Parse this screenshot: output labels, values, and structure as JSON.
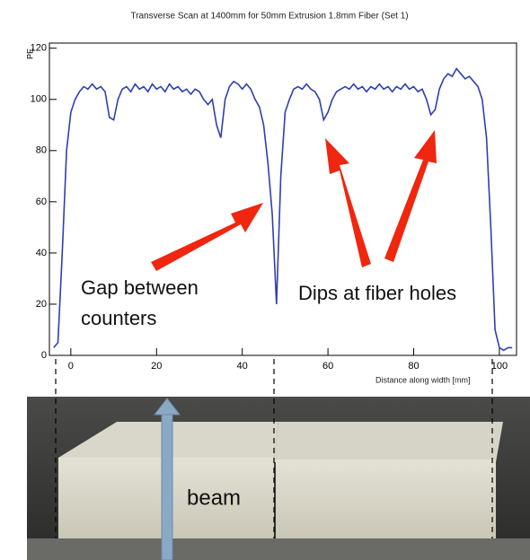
{
  "chart_data": {
    "type": "line",
    "title": "Transverse Scan at 1400mm for 50mm Extrusion 1.8mm Fiber (Set 1)",
    "x_label": "Distance along width [mm]",
    "y_label": "PE",
    "x": [
      -4,
      -3,
      -2,
      -1,
      0,
      1,
      2,
      3,
      4,
      5,
      6,
      7,
      8,
      9,
      10,
      11,
      12,
      13,
      14,
      15,
      16,
      17,
      18,
      19,
      20,
      21,
      22,
      23,
      24,
      25,
      26,
      27,
      28,
      29,
      30,
      31,
      32,
      33,
      34,
      35,
      36,
      37,
      38,
      39,
      40,
      41,
      42,
      43,
      44,
      45,
      46,
      47,
      48,
      49,
      50,
      51,
      52,
      53,
      54,
      55,
      56,
      57,
      58,
      59,
      60,
      61,
      62,
      63,
      64,
      65,
      66,
      67,
      68,
      69,
      70,
      71,
      72,
      73,
      74,
      75,
      76,
      77,
      78,
      79,
      80,
      81,
      82,
      83,
      84,
      85,
      86,
      87,
      88,
      89,
      90,
      91,
      92,
      93,
      94,
      95,
      96,
      97,
      98,
      99,
      100,
      101,
      102,
      103
    ],
    "series": [
      {
        "name": "PE",
        "color": "#2f3fb0",
        "values": [
          3,
          5,
          40,
          80,
          95,
          100,
          103,
          105,
          104,
          106,
          104,
          105,
          103,
          93,
          92,
          100,
          104,
          105,
          103,
          106,
          104,
          105,
          103,
          106,
          104,
          105,
          103,
          106,
          104,
          105,
          103,
          104,
          102,
          104,
          103,
          100,
          98,
          100,
          90,
          85,
          100,
          105,
          107,
          106,
          104,
          106,
          104,
          100,
          97,
          90,
          75,
          55,
          20,
          70,
          95,
          100,
          104,
          105,
          104,
          106,
          104,
          103,
          100,
          92,
          95,
          100,
          103,
          104,
          105,
          104,
          106,
          104,
          105,
          103,
          105,
          104,
          106,
          104,
          105,
          103,
          105,
          104,
          106,
          104,
          105,
          103,
          104,
          100,
          94,
          96,
          104,
          108,
          110,
          109,
          112,
          110,
          108,
          109,
          107,
          105,
          100,
          85,
          50,
          10,
          3,
          2,
          3,
          3
        ]
      }
    ],
    "xlim": [
      -5,
      104
    ],
    "ylim": [
      0,
      122
    ],
    "xticks": [
      0,
      20,
      40,
      60,
      80,
      100
    ],
    "yticks": [
      0,
      20,
      40,
      60,
      80,
      100,
      120
    ],
    "annotations": [
      "Gap between",
      "counters",
      "Dips at fiber holes",
      "beam"
    ]
  }
}
